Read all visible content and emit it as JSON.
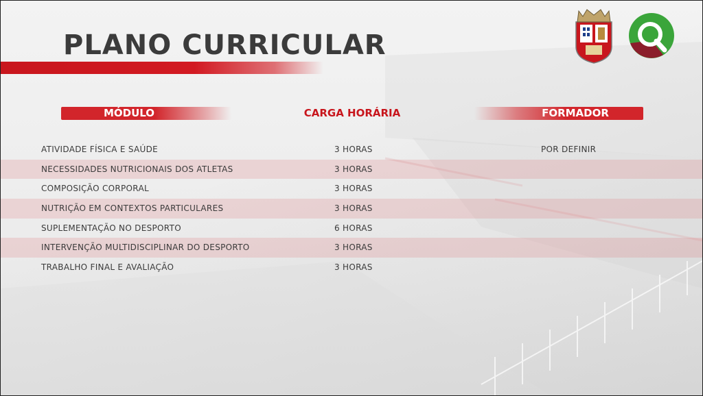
{
  "title": "PLANO CURRICULAR",
  "columns": {
    "module": "MÓDULO",
    "hours": "CARGA HORÁRIA",
    "trainer": "FORMADOR"
  },
  "rows": [
    {
      "module": "ATIVIDADE FÍSICA E SAÚDE",
      "hours": "3 HORAS",
      "trainer": "POR DEFINIR"
    },
    {
      "module": "NECESSIDADES NUTRICIONAIS DOS ATLETAS",
      "hours": "3 HORAS",
      "trainer": ""
    },
    {
      "module": "COMPOSIÇÃO CORPORAL",
      "hours": "3 HORAS",
      "trainer": ""
    },
    {
      "module": "NUTRIÇÃO EM CONTEXTOS PARTICULARES",
      "hours": "3 HORAS",
      "trainer": ""
    },
    {
      "module": "SUPLEMENTAÇÃO NO DESPORTO",
      "hours": "6 HORAS",
      "trainer": ""
    },
    {
      "module": "INTERVENÇÃO MULTIDISCIPLINAR DO DESPORTO",
      "hours": "3 HORAS",
      "trainer": ""
    },
    {
      "module": "TRABALHO FINAL E AVALIAÇÃO",
      "hours": "3 HORAS",
      "trainer": ""
    }
  ],
  "logos": {
    "club_crest": "club-crest-icon",
    "brand": "q-logo-icon"
  },
  "colors": {
    "accent_red": "#d2252b",
    "header_red": "#c8161d",
    "text_dark": "#3b3b3b",
    "brand_green": "#3aa53a",
    "brand_maroon": "#8b1e2b"
  }
}
